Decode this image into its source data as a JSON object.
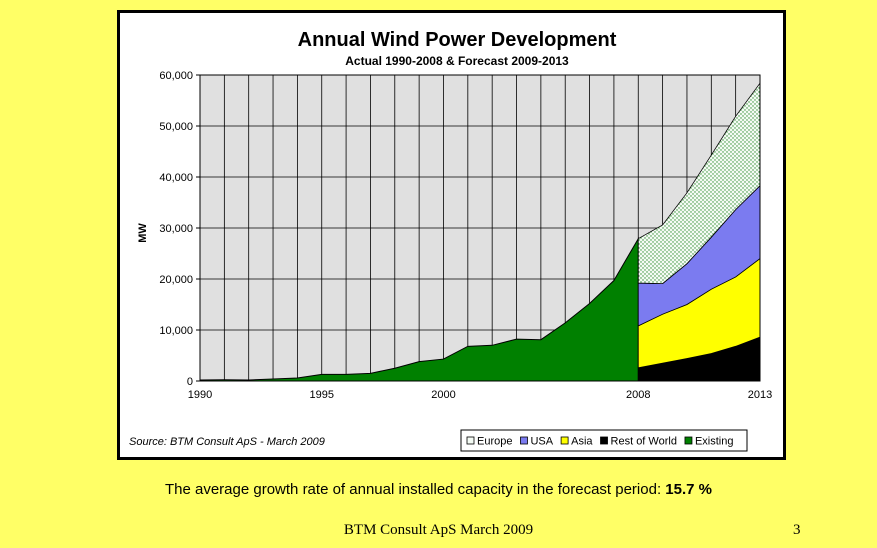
{
  "caption": {
    "text": "The average growth rate of annual installed capacity in the forecast period:",
    "value": "15.7 %"
  },
  "footer": {
    "text": "BTM Consult ApS March 2009",
    "page_number": "3"
  },
  "chart_data": {
    "type": "area",
    "title": "Annual Wind Power Development",
    "subtitle": "Actual 1990-2008 & Forecast 2009-2013",
    "ylabel": "MW",
    "xlabel": "",
    "ylim": [
      0,
      60000
    ],
    "xlim": [
      1990,
      2013
    ],
    "yticks": [
      "0",
      "10,000",
      "20,000",
      "30,000",
      "40,000",
      "50,000",
      "60,000"
    ],
    "xticks": [
      "1990",
      "1995",
      "2000",
      "2008",
      "2013"
    ],
    "source": "Source: BTM Consult ApS - March 2009",
    "grid": "vertical lines each year, horizontal lines each 10,000",
    "legend_position": "bottom-right",
    "existing": {
      "name": "Existing",
      "color": "#008000",
      "x": [
        1990,
        1991,
        1992,
        1993,
        1994,
        1995,
        1996,
        1997,
        1998,
        1999,
        2000,
        2001,
        2002,
        2003,
        2004,
        2005,
        2006,
        2007,
        2008
      ],
      "values": [
        200,
        250,
        200,
        400,
        600,
        1300,
        1300,
        1500,
        2500,
        3800,
        4300,
        6800,
        7000,
        8200,
        8100,
        11400,
        15200,
        19700,
        27900
      ]
    },
    "forecast": {
      "x": [
        2008,
        2009,
        2010,
        2011,
        2012,
        2013
      ],
      "series": [
        {
          "name": "Rest of World",
          "color": "#000000",
          "values": [
            2600,
            3500,
            4400,
            5400,
            6800,
            8600
          ]
        },
        {
          "name": "Asia",
          "color": "#ffff00",
          "values": [
            8200,
            9600,
            10600,
            12600,
            13600,
            15400
          ]
        },
        {
          "name": "USA",
          "color": "#7b7bf0",
          "values": [
            8400,
            6000,
            8000,
            10200,
            13200,
            14300
          ]
        },
        {
          "name": "Europe",
          "color": "#dff0df",
          "values": [
            8700,
            11500,
            13900,
            16100,
            18300,
            20100
          ]
        }
      ]
    },
    "legend": [
      "Europe",
      "USA",
      "Asia",
      "Rest of World",
      "Existing"
    ]
  }
}
